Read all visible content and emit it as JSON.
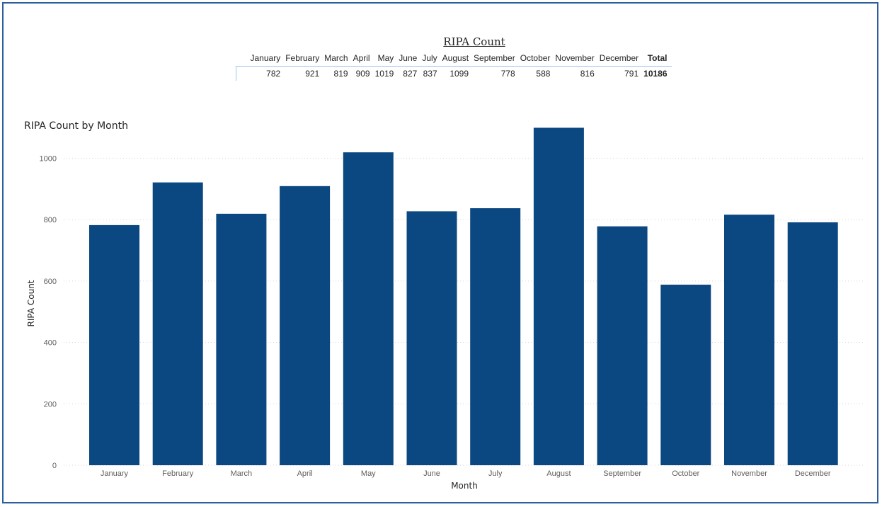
{
  "table": {
    "title": "RIPA Count",
    "headers": [
      "January",
      "February",
      "March",
      "April",
      "May",
      "June",
      "July",
      "August",
      "September",
      "October",
      "November",
      "December",
      "Total"
    ],
    "values": [
      "782",
      "921",
      "819",
      "909",
      "1019",
      "827",
      "837",
      "1099",
      "778",
      "588",
      "816",
      "791",
      "10186"
    ]
  },
  "chart_data": {
    "type": "bar",
    "title": "RIPA Count by Month",
    "xlabel": "Month",
    "ylabel": "RIPA Count",
    "categories": [
      "January",
      "February",
      "March",
      "April",
      "May",
      "June",
      "July",
      "August",
      "September",
      "October",
      "November",
      "December"
    ],
    "values": [
      782,
      921,
      819,
      909,
      1019,
      827,
      837,
      1099,
      778,
      588,
      816,
      791
    ],
    "ylim": [
      0,
      1100
    ],
    "yticks": [
      0,
      200,
      400,
      600,
      800,
      1000
    ],
    "grid": true,
    "legend": "none",
    "bar_color": "#0b4780",
    "grid_color": "#d6d6d6"
  }
}
